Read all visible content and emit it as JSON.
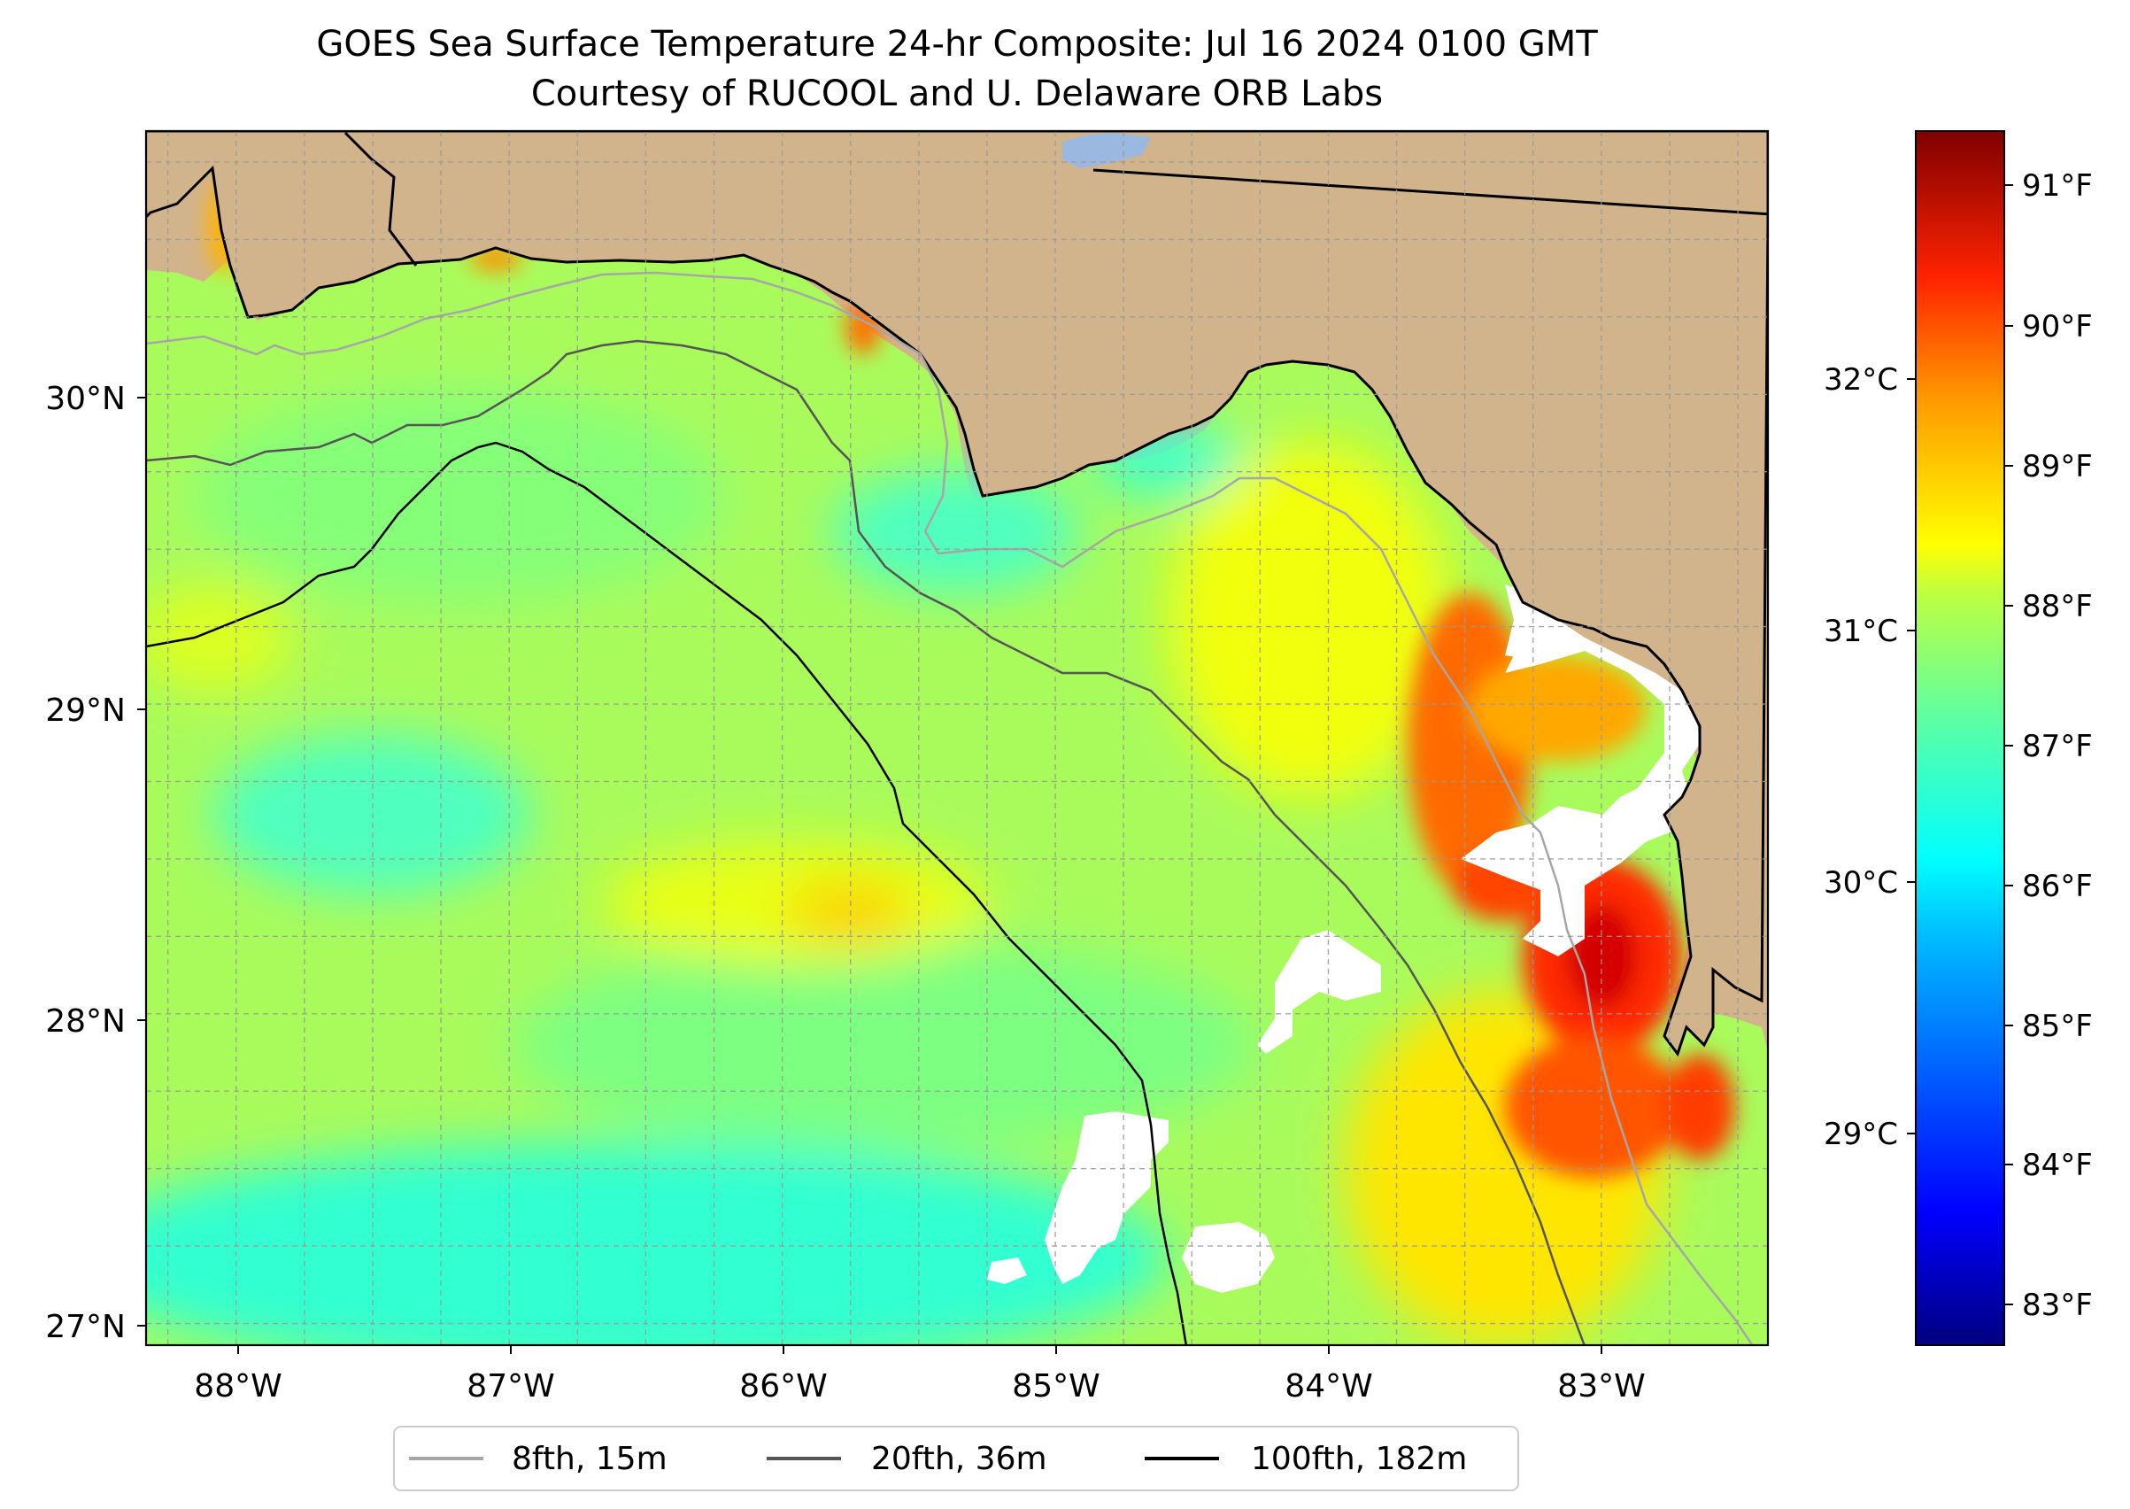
{
  "title": {
    "line1": "GOES Sea Surface Temperature 24-hr Composite: Jul 16 2024 0100 GMT",
    "line2": "Courtesy of RUCOOL and U. Delaware ORB Labs"
  },
  "map": {
    "lon_range": [
      -88.33,
      -82.39
    ],
    "lat_range": [
      26.93,
      30.85
    ],
    "lon_ticks": [
      "88°W",
      "87°W",
      "86°W",
      "85°W",
      "84°W",
      "83°W"
    ],
    "lat_ticks": [
      "30°N",
      "29°N",
      "28°N",
      "27°N"
    ],
    "colors": {
      "land": "#d2b48c",
      "no_data": "#ffffff",
      "lake": "#9ab8e0",
      "gridlines": "#999999"
    }
  },
  "colorbar": {
    "fahrenheit_ticks": [
      "91°F",
      "90°F",
      "89°F",
      "88°F",
      "87°F",
      "86°F",
      "85°F",
      "84°F",
      "83°F"
    ],
    "celsius_ticks": [
      "32°C",
      "31°C",
      "30°C",
      "29°C"
    ],
    "range_f": [
      82.7,
      91.3
    ],
    "colormap": [
      "#000080",
      "#0000ff",
      "#0080ff",
      "#00ffff",
      "#80ff80",
      "#ffff00",
      "#ff8000",
      "#ff0000",
      "#800000"
    ]
  },
  "legend": {
    "items": [
      {
        "label": "8fth, 15m",
        "color": "#a6a6a6"
      },
      {
        "label": "20fth, 36m",
        "color": "#555555"
      },
      {
        "label": "100fth, 182m",
        "color": "#000000"
      }
    ]
  }
}
